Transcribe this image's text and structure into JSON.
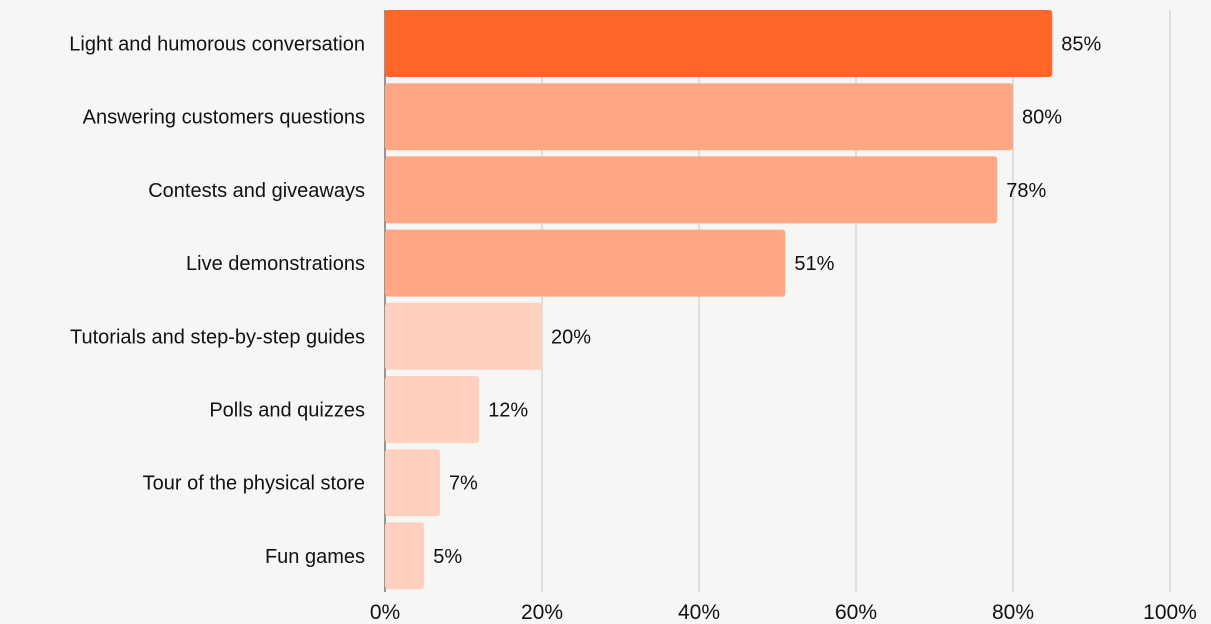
{
  "chart_data": {
    "type": "bar",
    "orientation": "horizontal",
    "categories": [
      "Light and humorous conversation",
      "Answering customers questions",
      "Contests and giveaways",
      "Live demonstrations",
      "Tutorials and step-by-step guides",
      "Polls and quizzes",
      "Tour of the physical store",
      "Fun games"
    ],
    "values": [
      85,
      80,
      78,
      51,
      20,
      12,
      7,
      5
    ],
    "value_labels": [
      "85%",
      "80%",
      "78%",
      "51%",
      "20%",
      "12%",
      "7%",
      "5%"
    ],
    "bar_colors": [
      "#ff6628",
      "#ffa784",
      "#ffa784",
      "#ffa784",
      "#ffd0bf",
      "#ffd0bf",
      "#ffd0bf",
      "#ffd0bf"
    ],
    "xlim": [
      0,
      100
    ],
    "xticks": [
      0,
      20,
      40,
      60,
      80,
      100
    ],
    "xtick_labels": [
      "0%",
      "20%",
      "40%",
      "60%",
      "80%",
      "100%"
    ],
    "grid": true,
    "grid_color": "#c4c4c4",
    "background": "#f6f7f5"
  }
}
